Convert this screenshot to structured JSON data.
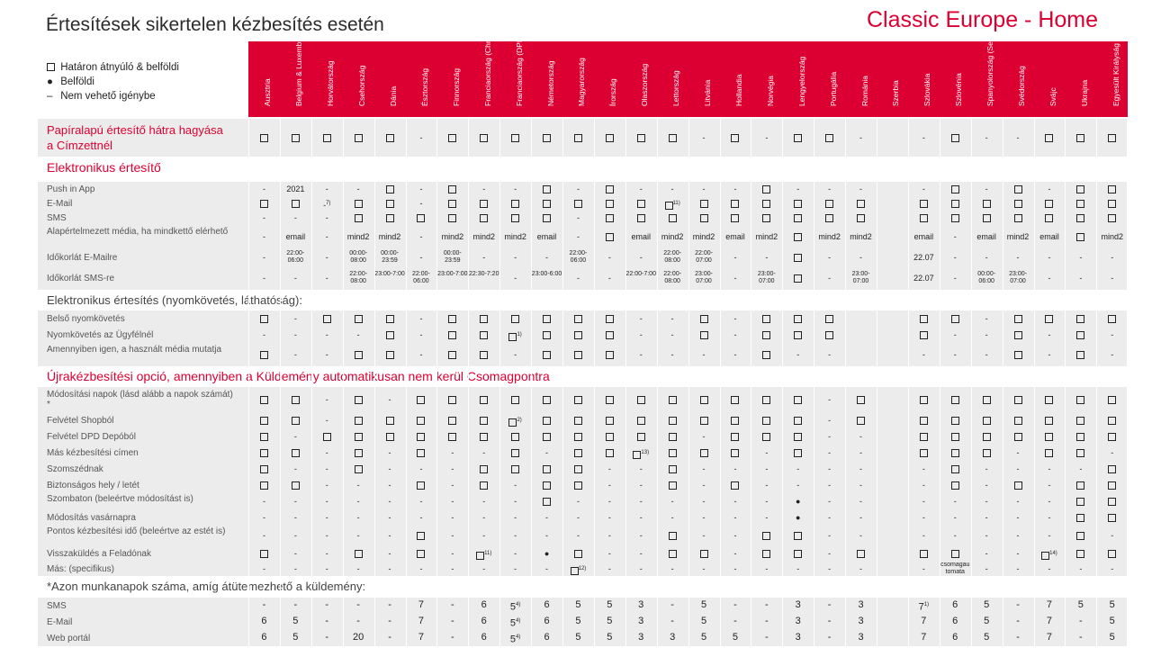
{
  "title": "Értesítések sikertelen kézbesítés esetén",
  "brand": "Classic Europe - Home",
  "legend": [
    {
      "mark": "☐",
      "text": "Határon átnyúló & belföldi"
    },
    {
      "mark": "●",
      "text": "Belföldi"
    },
    {
      "mark": "–",
      "text": "Nem vehető igénybe"
    }
  ],
  "colors": {
    "accent": "#dc0032",
    "shade": "#ececec"
  },
  "countries": [
    "Ausztria",
    "Belgium & Luxemburg",
    "Horvátország",
    "Csehország",
    "Dánia",
    "Észtország",
    "Finnország",
    "Franciaország (Chronopost)",
    "Franciaország (DPD)",
    "Németország",
    "Magyarország",
    "Írország",
    "Olaszország",
    "Lettország",
    "Litvánia",
    "Hollandia",
    "Norvégia",
    "Lengyelország",
    "Portugália",
    "Románia",
    "Szerbia",
    "Szlovákia",
    "Szlovénia",
    "Spanyolország (Seur)",
    "Svédország",
    "Svájc",
    "Ukrajna",
    "Egyesült Királyság"
  ],
  "sections": {
    "electronic": "Elektronikus értesítő",
    "tracking": "Elektronikus értesítés (nyomkövetés, láthatóság):",
    "redelivery": "Újrakézbesítési opció, amennyiben a Küldemény automatikusan nem kerül Csomagpontra",
    "workdays": "*Azon munkanapok száma, amíg átütemezhető a küldemény:"
  },
  "rows": [
    {
      "label": "Papíralapú értesítő hátra hagyása a Címzettnél",
      "cells": [
        "S",
        "S",
        "S",
        "S",
        "S",
        "-",
        "S",
        "S",
        "S",
        "S",
        "S",
        "S",
        "S",
        "S",
        "-",
        "S",
        "-",
        "S",
        "S",
        "-",
        "",
        "-",
        "S",
        "-",
        "-",
        "S",
        "S",
        "S"
      ]
    },
    {
      "label": "Push in App",
      "cells": [
        "-",
        "2021",
        "-",
        "-",
        "S",
        "-",
        "S",
        "-",
        "-",
        "S",
        "-",
        "S",
        "-",
        "-",
        "-",
        "-",
        "S",
        "-",
        "-",
        "-",
        "",
        "-",
        "S",
        "-",
        "S",
        "-",
        "S",
        "S"
      ]
    },
    {
      "label": "E-Mail",
      "cells": [
        "S",
        "S",
        "-7)",
        "S",
        "S",
        "-",
        "S",
        "S",
        "S",
        "S",
        "S",
        "S",
        "S",
        "S11)",
        "S",
        "S",
        "S",
        "S",
        "S",
        "S",
        "",
        "S",
        "S",
        "S",
        "S",
        "S",
        "S",
        "S"
      ]
    },
    {
      "label": "SMS",
      "cells": [
        "-",
        "-",
        "-",
        "S",
        "S",
        "S",
        "S",
        "S",
        "S",
        "S",
        "-",
        "S",
        "S",
        "S",
        "S",
        "S",
        "S",
        "S",
        "S",
        "S",
        "",
        "S",
        "S",
        "S",
        "S",
        "S",
        "S",
        "S"
      ]
    },
    {
      "label": "Alapértelmezett média, ha mindkettő elérhető",
      "cells": [
        "-",
        "email",
        "-",
        "mind2",
        "mind2",
        "-",
        "mind2",
        "mind2",
        "mind2",
        "email",
        "-",
        "S",
        "email",
        "mind2",
        "mind2",
        "email",
        "mind2",
        "S",
        "mind2",
        "mind2",
        "",
        "email",
        "-",
        "email",
        "mind2",
        "email",
        "S",
        "mind2"
      ]
    },
    {
      "label": "Időkorlát E-Mailre",
      "cells": [
        "-",
        "22:00-06:00",
        "-",
        "00:00-08:00",
        "00:00-23:59",
        "-",
        "00:00-23:59",
        "-",
        "-",
        "-",
        "22:00-06:00",
        "-",
        "-",
        "22:00-08:00",
        "22:00-07:00",
        "-",
        "-",
        "S",
        "-",
        "-",
        "",
        "22.07",
        "-",
        "-",
        "-",
        "-",
        "-",
        "-"
      ]
    },
    {
      "label": "Időkorlát SMS-re",
      "cells": [
        "-",
        "-",
        "-",
        "22:00-08:00",
        "23:00-7:00",
        "22:00-06:00",
        "23:00-7:00",
        "22:30-7:20",
        "-",
        "23:00-6:00",
        "-",
        "-",
        "22:00-7:00",
        "22:00-08:00",
        "23:00-07:00",
        "-",
        "23:00-07:00",
        "S",
        "-",
        "23:00-07:00",
        "",
        "22.07",
        "-",
        "00:00-06:00",
        "23:00-07:00",
        "-",
        "-",
        "-"
      ]
    },
    {
      "label": "Belső nyomkövetés",
      "cells": [
        "S",
        "-",
        "S",
        "S",
        "S",
        "-",
        "S",
        "S",
        "S",
        "S",
        "S",
        "S",
        "-",
        "-",
        "S",
        "-",
        "S",
        "S",
        "S",
        "",
        "",
        "S",
        "S",
        "-",
        "S",
        "S",
        "S",
        "S"
      ]
    },
    {
      "label": "Nyomkövetés az Ügyfélnél",
      "cells": [
        "-",
        "-",
        "-",
        "-",
        "S",
        "-",
        "S",
        "S",
        "S1)",
        "S",
        "S",
        "S",
        "-",
        "-",
        "S",
        "-",
        "S",
        "S",
        "S",
        "",
        "",
        "S",
        "-",
        "-",
        "S",
        "-",
        "S",
        "-"
      ]
    },
    {
      "label": "Amennyiben igen, a használt média mutatja",
      "cells": [
        "S",
        "-",
        "-",
        "S",
        "S",
        "-",
        "S",
        "S",
        "-",
        "S",
        "S",
        "S",
        "-",
        "-",
        "-",
        "-",
        "S",
        "-",
        "-",
        "",
        "",
        "-",
        "-",
        "-",
        "S",
        "-",
        "S",
        "-"
      ]
    },
    {
      "label": "Módosítási napok (lásd alább a napok számát) *",
      "cells": [
        "S",
        "S",
        "-",
        "S",
        "-",
        "S",
        "S",
        "S",
        "S",
        "S",
        "S",
        "S",
        "S",
        "S",
        "S",
        "S",
        "S",
        "S",
        "-",
        "S",
        "",
        "S",
        "S",
        "S",
        "S",
        "S",
        "S",
        "S"
      ]
    },
    {
      "label": "Felvétel Shopból",
      "cells": [
        "S",
        "S",
        "-",
        "S",
        "S",
        "S",
        "S",
        "S",
        "S2)",
        "S",
        "S",
        "S",
        "S",
        "S",
        "S",
        "S",
        "S",
        "S",
        "-",
        "S",
        "",
        "S",
        "S",
        "S",
        "S",
        "S",
        "S",
        "S"
      ]
    },
    {
      "label": "Felvétel DPD Depóból",
      "cells": [
        "S",
        "-",
        "S",
        "S",
        "S",
        "S",
        "S",
        "S",
        "S",
        "S",
        "S",
        "S",
        "S",
        "S",
        "-",
        "S",
        "S",
        "S",
        "-",
        "-",
        "",
        "S",
        "S",
        "S",
        "S",
        "S",
        "S",
        "S"
      ]
    },
    {
      "label": "Más kézbesítési címen",
      "cells": [
        "S",
        "S",
        "-",
        "S",
        "-",
        "S",
        "-",
        "-",
        "S",
        "-",
        "S",
        "S",
        "S13)",
        "S",
        "S",
        "S",
        "-",
        "S",
        "-",
        "-",
        "",
        "S",
        "S",
        "S",
        "-",
        "S",
        "S",
        "-"
      ]
    },
    {
      "label": "Szomszédnak",
      "cells": [
        "S",
        "-",
        "-",
        "S",
        "-",
        "-",
        "-",
        "S",
        "S",
        "S",
        "S",
        "-",
        "-",
        "S",
        "-",
        "-",
        "-",
        "-",
        "-",
        "-",
        "",
        "-",
        "S",
        "-",
        "-",
        "-",
        "-",
        "S"
      ]
    },
    {
      "label": "Biztonságos hely / letét",
      "cells": [
        "S",
        "S",
        "-",
        "-",
        "-",
        "S",
        "-",
        "S",
        "-",
        "S",
        "S",
        "-",
        "-",
        "S",
        "-",
        "S",
        "-",
        "-",
        "-",
        "-",
        "",
        "-",
        "S",
        "-",
        "S",
        "-",
        "S",
        "S"
      ]
    },
    {
      "label": "Szombaton (beleértve módosítást is)",
      "cells": [
        "-",
        "-",
        "-",
        "-",
        "-",
        "-",
        "-",
        "-",
        "-",
        "S",
        "-",
        "-",
        "-",
        "-",
        "-",
        "-",
        "-",
        "●",
        "-",
        "-",
        "",
        "-",
        "-",
        "-",
        "-",
        "-",
        "S",
        "S"
      ]
    },
    {
      "label": "Módosítás vasárnapra",
      "cells": [
        "-",
        "-",
        "-",
        "-",
        "-",
        "-",
        "-",
        "-",
        "-",
        "-",
        "-",
        "-",
        "-",
        "-",
        "-",
        "-",
        "-",
        "●",
        "-",
        "-",
        "",
        "-",
        "-",
        "-",
        "-",
        "-",
        "S",
        "S"
      ]
    },
    {
      "label": "Pontos kézbesítési idő (beleértve az estét is)",
      "cells": [
        "-",
        "-",
        "-",
        "-",
        "-",
        "S",
        "-",
        "-",
        "-",
        "-",
        "-",
        "-",
        "-",
        "S",
        "-",
        "-",
        "S",
        "S",
        "-",
        "-",
        "",
        "-",
        "-",
        "-",
        "-",
        "-",
        "S",
        "-"
      ]
    },
    {
      "label": "Visszaküldés a Feladónak",
      "cells": [
        "S",
        "-",
        "-",
        "S",
        "-",
        "S",
        "-",
        "S11)",
        "-",
        "●",
        "S",
        "-",
        "-",
        "S",
        "S",
        "-",
        "S",
        "S",
        "-",
        "S",
        "",
        "S",
        "S",
        "-",
        "-",
        "S14)",
        "S",
        "S"
      ]
    },
    {
      "label": "Más: (specifikus)",
      "cells": [
        "-",
        "-",
        "-",
        "-",
        "-",
        "-",
        "-",
        "-",
        "-",
        "-",
        "S12)",
        "-",
        "-",
        "-",
        "-",
        "-",
        "-",
        "-",
        "-",
        "-",
        "",
        "-",
        "csomagau tomata",
        "-",
        "-",
        "-",
        "-",
        "-"
      ]
    },
    {
      "label": "SMS",
      "cells": [
        "-",
        "-",
        "-",
        "-",
        "-",
        "7",
        "-",
        "6",
        "5 4)",
        "6",
        "5",
        "5",
        "3",
        "-",
        "5",
        "-",
        "-",
        "3",
        "-",
        "3",
        "",
        "7 1)",
        "6",
        "5",
        "-",
        "7",
        "5",
        "5"
      ]
    },
    {
      "label": "E-Mail",
      "cells": [
        "6",
        "5",
        "-",
        "-",
        "-",
        "7",
        "-",
        "6",
        "5 4)",
        "6",
        "5",
        "5",
        "3",
        "-",
        "5",
        "-",
        "-",
        "3",
        "-",
        "3",
        "",
        "7",
        "6",
        "5",
        "-",
        "7",
        "-",
        "5"
      ]
    },
    {
      "label": "Web portál",
      "cells": [
        "6",
        "5",
        "-",
        "20",
        "-",
        "7",
        "-",
        "6",
        "5 4)",
        "6",
        "5",
        "5",
        "3",
        "3",
        "5",
        "5",
        "-",
        "3",
        "-",
        "3",
        "",
        "7",
        "6",
        "5",
        "-",
        "7",
        "-",
        "5"
      ]
    }
  ]
}
